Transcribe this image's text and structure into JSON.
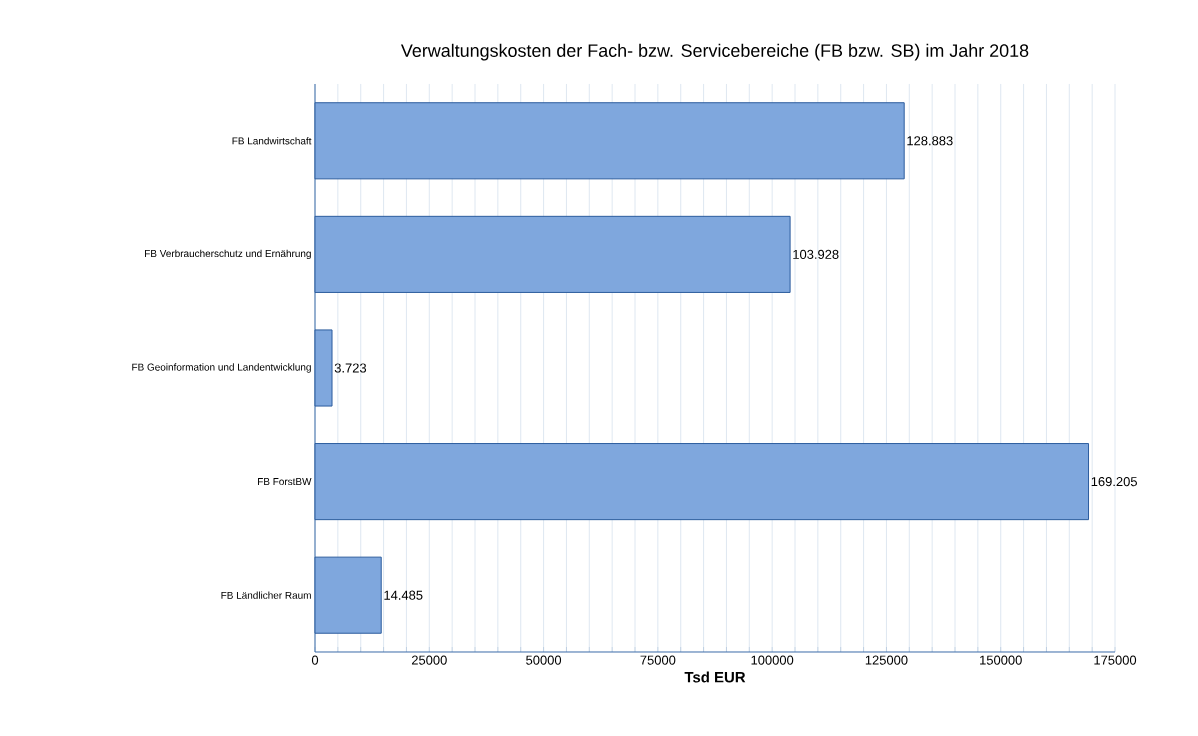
{
  "chart_data": {
    "type": "bar",
    "orientation": "horizontal",
    "title": "Verwaltungskosten der Fach- bzw. Servicebereiche (FB bzw. SB) im Jahr 2018",
    "xlabel": "Tsd EUR",
    "categories": [
      "FB Landwirtschaft",
      "FB Verbraucherschutz und Ernährung",
      "FB Geoinformation und Landentwicklung",
      "FB ForstBW",
      "FB Ländlicher Raum"
    ],
    "values": [
      128883,
      103928,
      3723,
      169205,
      14485
    ],
    "value_labels": [
      "128.883",
      "103.928",
      "3.723",
      "169.205",
      "14.485"
    ],
    "color": "#7fa7dd",
    "xlim": [
      0,
      175000
    ],
    "xticks": [
      0,
      {
        "value": 5000,
        "label": null
      },
      {
        "value": 10000,
        "label": null
      },
      {
        "value": 15000,
        "label": null
      },
      {
        "value": 20000,
        "label": null
      },
      25000,
      {
        "value": 30000,
        "label": null
      },
      {
        "value": 35000,
        "label": null
      },
      {
        "value": 40000,
        "label": null
      },
      {
        "value": 45000,
        "label": null
      },
      50000,
      {
        "value": 55000,
        "label": null
      },
      {
        "value": 60000,
        "label": null
      },
      {
        "value": 65000,
        "label": null
      },
      {
        "value": 70000,
        "label": null
      },
      75000,
      {
        "value": 80000,
        "label": null
      },
      {
        "value": 85000,
        "label": null
      },
      {
        "value": 90000,
        "label": null
      },
      {
        "value": 95000,
        "label": null
      },
      100000,
      {
        "value": 105000,
        "label": null
      },
      {
        "value": 110000,
        "label": null
      },
      {
        "value": 115000,
        "label": null
      },
      {
        "value": 120000,
        "label": null
      },
      125000,
      {
        "value": 130000,
        "label": null
      },
      {
        "value": 135000,
        "label": null
      },
      {
        "value": 140000,
        "label": null
      },
      {
        "value": 145000,
        "label": null
      },
      150000,
      {
        "value": 155000,
        "label": null
      },
      {
        "value": 160000,
        "label": null
      },
      {
        "value": 165000,
        "label": null
      },
      {
        "value": 170000,
        "label": null
      },
      175000
    ],
    "grid": "x"
  }
}
